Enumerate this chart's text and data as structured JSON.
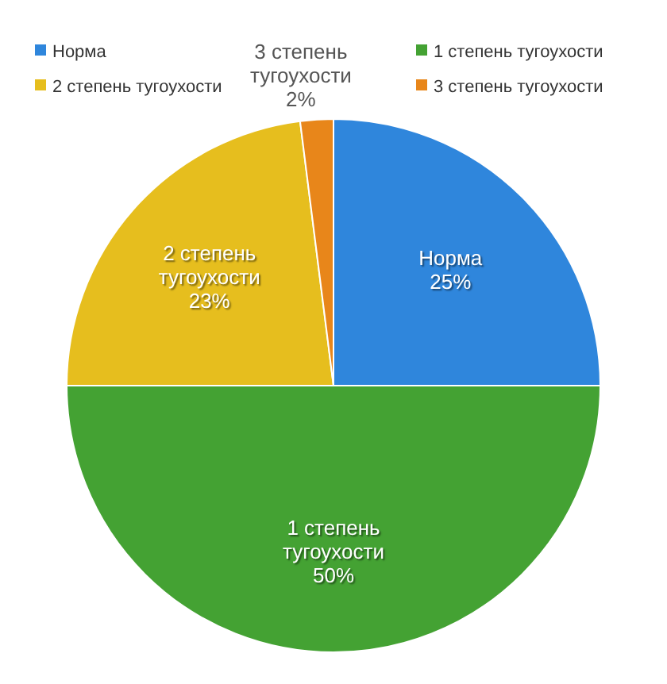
{
  "chart_data": {
    "type": "pie",
    "categories": [
      "Норма",
      "1 степень тугоухости",
      "2 степень тугоухости",
      "3 степень тугоухости"
    ],
    "values": [
      25,
      50,
      23,
      2
    ],
    "colors": [
      "#2f86dc",
      "#44a233",
      "#e6be1e",
      "#e8861a"
    ],
    "value_labels": [
      "25%",
      "50%",
      "23%",
      "2%"
    ],
    "legend": "top"
  }
}
